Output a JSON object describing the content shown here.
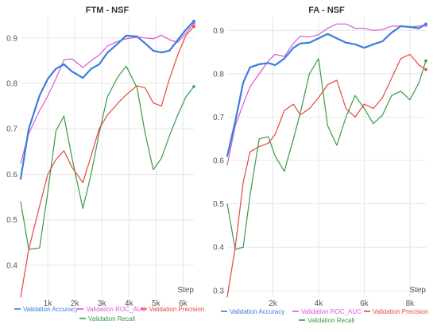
{
  "chart_data": [
    {
      "type": "line",
      "title": "FTM - NSF",
      "xlabel": "Step",
      "xlim": [
        0,
        6400
      ],
      "ylim": [
        0.33,
        0.945
      ],
      "xticks": [
        {
          "value": 1000,
          "label": "1k"
        },
        {
          "value": 2000,
          "label": "2k"
        },
        {
          "value": 3000,
          "label": "3k"
        },
        {
          "value": 4000,
          "label": "4k"
        },
        {
          "value": 5000,
          "label": "5k"
        },
        {
          "value": 6000,
          "label": "6k"
        }
      ],
      "yticks": [
        {
          "value": 0.4,
          "label": "0.4"
        },
        {
          "value": 0.5,
          "label": "0.5"
        },
        {
          "value": 0.6,
          "label": "0.6"
        },
        {
          "value": 0.7,
          "label": "0.7"
        },
        {
          "value": 0.8,
          "label": "0.8"
        },
        {
          "value": 0.9,
          "label": "0.9"
        }
      ],
      "grid": true,
      "series": [
        {
          "name": "Validation Accuracy",
          "color": "#3b7ddd",
          "width": 2.2,
          "x": [
            0,
            300,
            700,
            1000,
            1300,
            1600,
            1900,
            2300,
            2600,
            2900,
            3200,
            3600,
            3900,
            4300,
            4600,
            4900,
            5200,
            5500,
            5800,
            6100,
            6400
          ],
          "y": [
            0.59,
            0.7,
            0.773,
            0.81,
            0.832,
            0.842,
            0.826,
            0.812,
            0.832,
            0.842,
            0.867,
            0.888,
            0.905,
            0.903,
            0.888,
            0.872,
            0.868,
            0.872,
            0.895,
            0.918,
            0.937
          ]
        },
        {
          "name": "Validation ROC_AUC",
          "color": "#d957d9",
          "width": 1.2,
          "x": [
            0,
            300,
            700,
            1000,
            1300,
            1600,
            1900,
            2300,
            2600,
            2900,
            3200,
            3600,
            3900,
            4300,
            4600,
            4900,
            5200,
            5500,
            5800,
            6100,
            6400
          ],
          "y": [
            0.625,
            0.69,
            0.74,
            0.772,
            0.81,
            0.852,
            0.854,
            0.835,
            0.85,
            0.862,
            0.882,
            0.893,
            0.898,
            0.902,
            0.9,
            0.898,
            0.906,
            0.896,
            0.89,
            0.91,
            0.932
          ]
        },
        {
          "name": "Validation Precision",
          "color": "#e8453c",
          "width": 1.2,
          "x": [
            0,
            300,
            700,
            1000,
            1300,
            1600,
            1900,
            2300,
            2600,
            2900,
            3200,
            3600,
            3900,
            4300,
            4600,
            4900,
            5200,
            5500,
            5800,
            6100,
            6400
          ],
          "y": [
            0.33,
            0.435,
            0.53,
            0.6,
            0.632,
            0.652,
            0.615,
            0.582,
            0.64,
            0.7,
            0.73,
            0.757,
            0.775,
            0.795,
            0.79,
            0.757,
            0.75,
            0.81,
            0.862,
            0.905,
            0.925
          ]
        },
        {
          "name": "Validation Recall",
          "color": "#3a9a46",
          "width": 1.2,
          "x": [
            0,
            300,
            700,
            1000,
            1300,
            1600,
            1900,
            2300,
            2600,
            2900,
            3200,
            3600,
            3900,
            4300,
            4600,
            4900,
            5200,
            5500,
            5800,
            6100,
            6400
          ],
          "y": [
            0.54,
            0.435,
            0.438,
            0.56,
            0.695,
            0.728,
            0.635,
            0.525,
            0.6,
            0.69,
            0.77,
            0.815,
            0.838,
            0.79,
            0.69,
            0.61,
            0.635,
            0.685,
            0.73,
            0.77,
            0.793
          ]
        }
      ]
    },
    {
      "type": "line",
      "title": "FA - NSF",
      "xlabel": "Step",
      "xlim": [
        0,
        8700
      ],
      "ylim": [
        0.285,
        0.93
      ],
      "xticks": [
        {
          "value": 2000,
          "label": "2k"
        },
        {
          "value": 4000,
          "label": "4k"
        },
        {
          "value": 6000,
          "label": "6k"
        },
        {
          "value": 8000,
          "label": "8k"
        }
      ],
      "yticks": [
        {
          "value": 0.3,
          "label": "0.3"
        },
        {
          "value": 0.4,
          "label": "0.4"
        },
        {
          "value": 0.5,
          "label": "0.5"
        },
        {
          "value": 0.6,
          "label": "0.6"
        },
        {
          "value": 0.7,
          "label": "0.7"
        },
        {
          "value": 0.8,
          "label": "0.8"
        },
        {
          "value": 0.9,
          "label": "0.9"
        }
      ],
      "grid": true,
      "series": [
        {
          "name": "Validation Accuracy",
          "color": "#3b7ddd",
          "width": 2.2,
          "x": [
            0,
            350,
            700,
            1000,
            1400,
            1800,
            2100,
            2500,
            2900,
            3200,
            3600,
            4000,
            4400,
            4800,
            5200,
            5600,
            6000,
            6400,
            6800,
            7200,
            7600,
            8000,
            8400,
            8700
          ],
          "y": [
            0.61,
            0.69,
            0.78,
            0.815,
            0.822,
            0.825,
            0.82,
            0.835,
            0.86,
            0.87,
            0.872,
            0.882,
            0.892,
            0.882,
            0.872,
            0.868,
            0.86,
            0.868,
            0.875,
            0.895,
            0.91,
            0.908,
            0.905,
            0.915
          ]
        },
        {
          "name": "Validation ROC_AUC",
          "color": "#d957d9",
          "width": 1.2,
          "x": [
            0,
            350,
            700,
            1000,
            1400,
            1800,
            2100,
            2500,
            2900,
            3200,
            3600,
            4000,
            4400,
            4800,
            5200,
            5600,
            6000,
            6400,
            6800,
            7200,
            7600,
            8000,
            8400,
            8700
          ],
          "y": [
            0.59,
            0.68,
            0.73,
            0.77,
            0.8,
            0.83,
            0.845,
            0.84,
            0.87,
            0.887,
            0.885,
            0.89,
            0.905,
            0.915,
            0.915,
            0.905,
            0.905,
            0.9,
            0.902,
            0.91,
            0.91,
            0.908,
            0.91,
            0.912
          ]
        },
        {
          "name": "Validation Precision",
          "color": "#e8453c",
          "width": 1.2,
          "x": [
            0,
            350,
            700,
            1000,
            1400,
            1800,
            2100,
            2500,
            2900,
            3200,
            3600,
            4000,
            4400,
            4800,
            5200,
            5600,
            6000,
            6400,
            6800,
            7200,
            7600,
            8000,
            8400,
            8700
          ],
          "y": [
            0.285,
            0.4,
            0.55,
            0.62,
            0.632,
            0.64,
            0.66,
            0.715,
            0.73,
            0.705,
            0.72,
            0.745,
            0.775,
            0.785,
            0.72,
            0.7,
            0.73,
            0.72,
            0.745,
            0.79,
            0.835,
            0.845,
            0.82,
            0.81
          ]
        },
        {
          "name": "Validation Recall",
          "color": "#3a9a46",
          "width": 1.2,
          "x": [
            0,
            350,
            700,
            1000,
            1400,
            1800,
            2100,
            2500,
            2900,
            3200,
            3600,
            4000,
            4400,
            4800,
            5200,
            5600,
            6000,
            6400,
            6800,
            7200,
            7600,
            8000,
            8400,
            8700
          ],
          "y": [
            0.5,
            0.395,
            0.4,
            0.52,
            0.65,
            0.655,
            0.61,
            0.575,
            0.65,
            0.71,
            0.8,
            0.835,
            0.68,
            0.635,
            0.7,
            0.75,
            0.72,
            0.685,
            0.705,
            0.75,
            0.76,
            0.74,
            0.78,
            0.83
          ]
        }
      ]
    }
  ]
}
